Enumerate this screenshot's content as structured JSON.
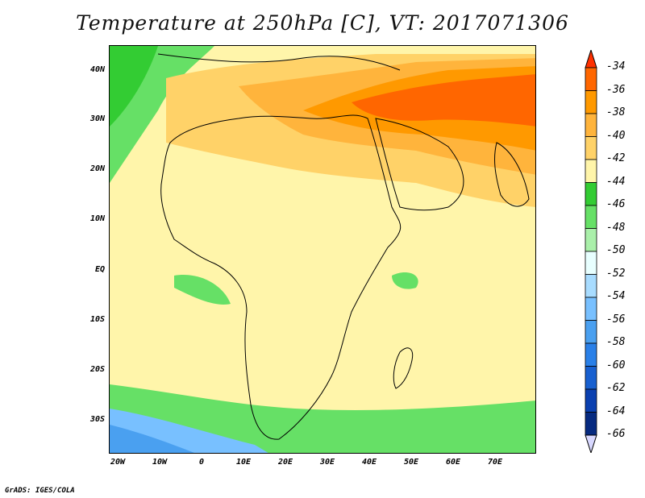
{
  "title": "Temperature at 250hPa [C], VT: 2017071306",
  "credit": "GrADS: IGES/COLA",
  "map": {
    "region": "Africa, Middle East and western Indian Ocean",
    "lat_labels": [
      "40N",
      "30N",
      "20N",
      "10N",
      "EQ",
      "10S",
      "20S",
      "30S"
    ],
    "lon_labels": [
      "20W",
      "10W",
      "0",
      "10E",
      "20E",
      "30E",
      "40E",
      "50E",
      "60E",
      "70E"
    ]
  },
  "colorbar": {
    "labels": [
      "-34",
      "-36",
      "-38",
      "-40",
      "-42",
      "-44",
      "-46",
      "-48",
      "-50",
      "-52",
      "-54",
      "-56",
      "-58",
      "-60",
      "-62",
      "-64",
      "-66"
    ],
    "colors": [
      "#ff3000",
      "#ff6600",
      "#ff9900",
      "#ffb43c",
      "#ffd268",
      "#fff5aa",
      "#33cc33",
      "#66e066",
      "#aaf0aa",
      "#e8ffff",
      "#a8dcff",
      "#78c0ff",
      "#4aa0f0",
      "#2a80e8",
      "#1860d0",
      "#0a40b0",
      "#062a80",
      "#d8d8ff"
    ]
  }
}
